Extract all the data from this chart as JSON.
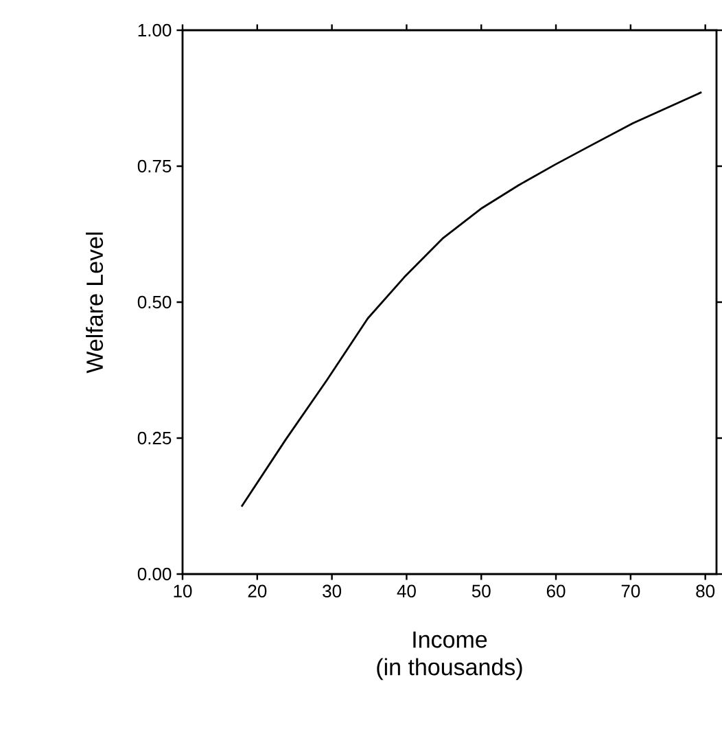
{
  "chart_data": {
    "type": "line",
    "xlabel": "Income\n(in thousands)",
    "ylabel": "Welfare Level",
    "x": [
      17.9,
      23.8,
      29.3,
      34.8,
      39.7,
      44.9,
      50.1,
      55,
      59.9,
      64.8,
      70.3,
      79.5
    ],
    "values": [
      0.124,
      0.247,
      0.356,
      0.47,
      0.546,
      0.618,
      0.673,
      0.715,
      0.753,
      0.789,
      0.829,
      0.886
    ],
    "color": "#000000",
    "xlim": [
      10,
      81.5
    ],
    "ylim": [
      0,
      1
    ],
    "xticks": [
      10,
      20,
      30,
      40,
      50,
      60,
      70,
      80
    ],
    "yticks": [
      {
        "value": 0,
        "label": "0.00"
      },
      {
        "value": 0.25,
        "label": "0.25"
      },
      {
        "value": 0.5,
        "label": "0.50"
      },
      {
        "value": 0.75,
        "label": "0.75"
      },
      {
        "value": 1,
        "label": "1.00"
      }
    ],
    "grid": false,
    "marker": "none",
    "line_style": "solid"
  }
}
